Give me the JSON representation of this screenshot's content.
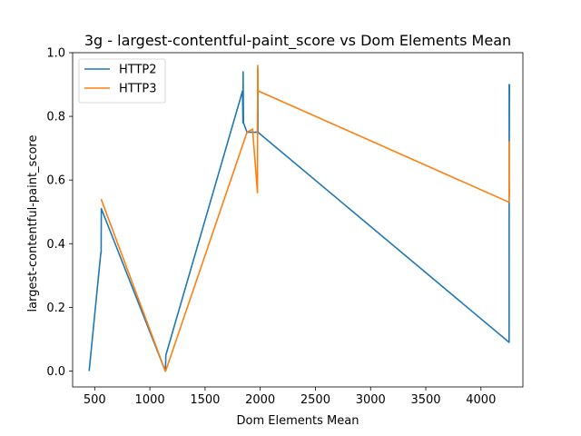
{
  "chart_data": {
    "type": "line",
    "title": "3g - largest-contentful-paint_score vs Dom Elements Mean",
    "xlabel": "Dom Elements Mean",
    "ylabel": "largest-contentful-paint_score",
    "xlim": [
      300,
      4380
    ],
    "ylim": [
      -0.05,
      1.0
    ],
    "xticks": [
      500,
      1000,
      1500,
      2000,
      2500,
      3000,
      3500,
      4000
    ],
    "xtick_labels": [
      "500",
      "1000",
      "1500",
      "2000",
      "2500",
      "3000",
      "3500",
      "4000"
    ],
    "yticks": [
      0.0,
      0.2,
      0.4,
      0.6,
      0.8,
      1.0
    ],
    "ytick_labels": [
      "0.0",
      "0.2",
      "0.4",
      "0.6",
      "0.8",
      "1.0"
    ],
    "legend_position": "top-left",
    "grid": false,
    "series": [
      {
        "name": "HTTP2",
        "color": "#1f77b4",
        "x": [
          450,
          555,
          558,
          560,
          1140,
          1142,
          1145,
          1840,
          1843,
          1845,
          1848,
          1880,
          1975,
          1978,
          1980,
          4255,
          4256,
          4257,
          4258
        ],
        "y": [
          0.0,
          0.37,
          0.37,
          0.51,
          0.0,
          0.02,
          0.05,
          0.88,
          0.78,
          0.94,
          0.78,
          0.75,
          0.75,
          0.95,
          0.75,
          0.09,
          0.9,
          0.72,
          0.9
        ]
      },
      {
        "name": "HTTP3",
        "color": "#ff7f0e",
        "x": [
          558,
          1140,
          1143,
          1880,
          1930,
          1975,
          1977,
          1980,
          1982,
          4255,
          4256,
          4257,
          4258
        ],
        "y": [
          0.54,
          0.0,
          0.0,
          0.75,
          0.76,
          0.56,
          0.96,
          0.89,
          0.88,
          0.53,
          0.72,
          0.55,
          0.57
        ]
      }
    ]
  }
}
